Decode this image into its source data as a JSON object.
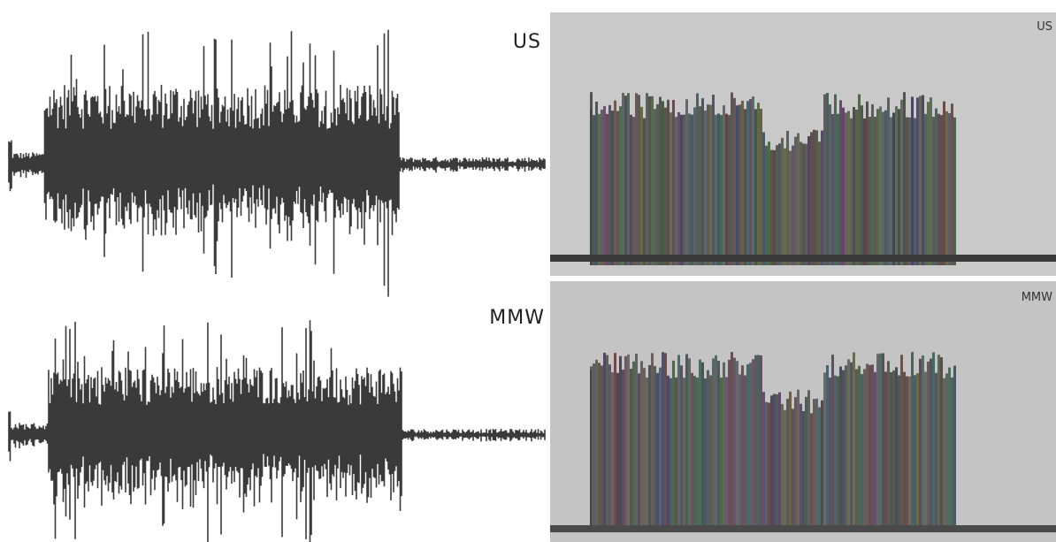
{
  "waveforms": [
    {
      "label": "US"
    },
    {
      "label": "MMW"
    }
  ],
  "spectrograms": [
    {
      "label": "US"
    },
    {
      "label": "MMW"
    }
  ]
}
